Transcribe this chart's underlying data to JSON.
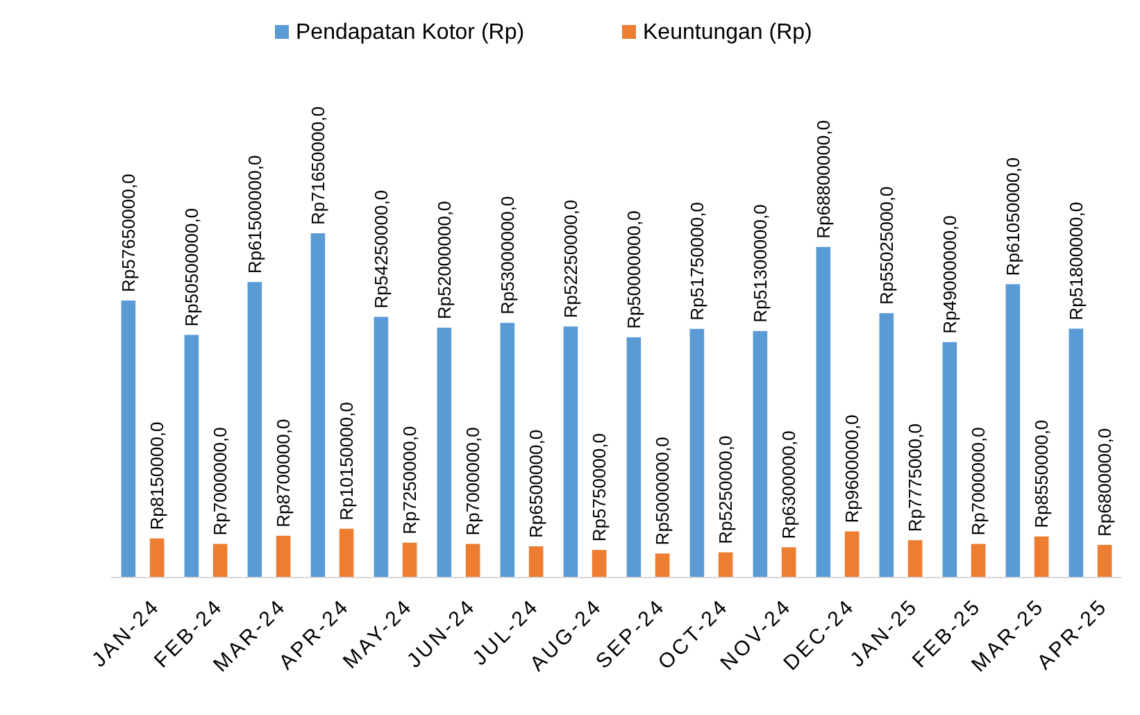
{
  "chart_data": {
    "type": "bar",
    "categories": [
      "JAN-24",
      "FEB-24",
      "MAR-24",
      "APR-24",
      "MAY-24",
      "JUN-24",
      "JUL-24",
      "AUG-24",
      "SEP-24",
      "OCT-24",
      "NOV-24",
      "DEC-24",
      "JAN-25",
      "FEB-25",
      "MAR-25",
      "APR-25"
    ],
    "series": [
      {
        "name": "Pendapatan Kotor (Rp)",
        "color": "#5b9bd5",
        "values": [
          57650000,
          50500000,
          61500000,
          71650000,
          54250000,
          52000000,
          53000000,
          52250000,
          50000000,
          51750000,
          51300000,
          68800000,
          55025000,
          49000000,
          61050000,
          51800000
        ],
        "value_labels": [
          "Rp57650000,0",
          "Rp50500000,0",
          "Rp61500000,0",
          "Rp71650000,0",
          "Rp54250000,0",
          "Rp52000000,0",
          "Rp53000000,0",
          "Rp52250000,0",
          "Rp50000000,0",
          "Rp51750000,0",
          "Rp51300000,0",
          "Rp68800000,0",
          "Rp55025000,0",
          "Rp49000000,0",
          "Rp61050000,0",
          "Rp51800000,0"
        ]
      },
      {
        "name": "Keuntungan (Rp)",
        "color": "#ed7d31",
        "values": [
          8150000,
          7000000,
          8700000,
          10150000,
          7250000,
          7000000,
          6500000,
          5750000,
          5000000,
          5250000,
          6300000,
          9600000,
          7775000,
          7000000,
          8550000,
          6800000
        ],
        "value_labels": [
          "Rp8150000,0",
          "Rp7000000,0",
          "Rp8700000,0",
          "Rp10150000,0",
          "Rp7250000,0",
          "Rp7000000,0",
          "Rp6500000,0",
          "Rp5750000,0",
          "Rp5000000,0",
          "Rp5250000,0",
          "Rp6300000,0",
          "Rp9600000,0",
          "Rp7775000,0",
          "Rp7000000,0",
          "Rp8550000,0",
          "Rp6800000,0"
        ]
      }
    ],
    "legend": "top"
  }
}
